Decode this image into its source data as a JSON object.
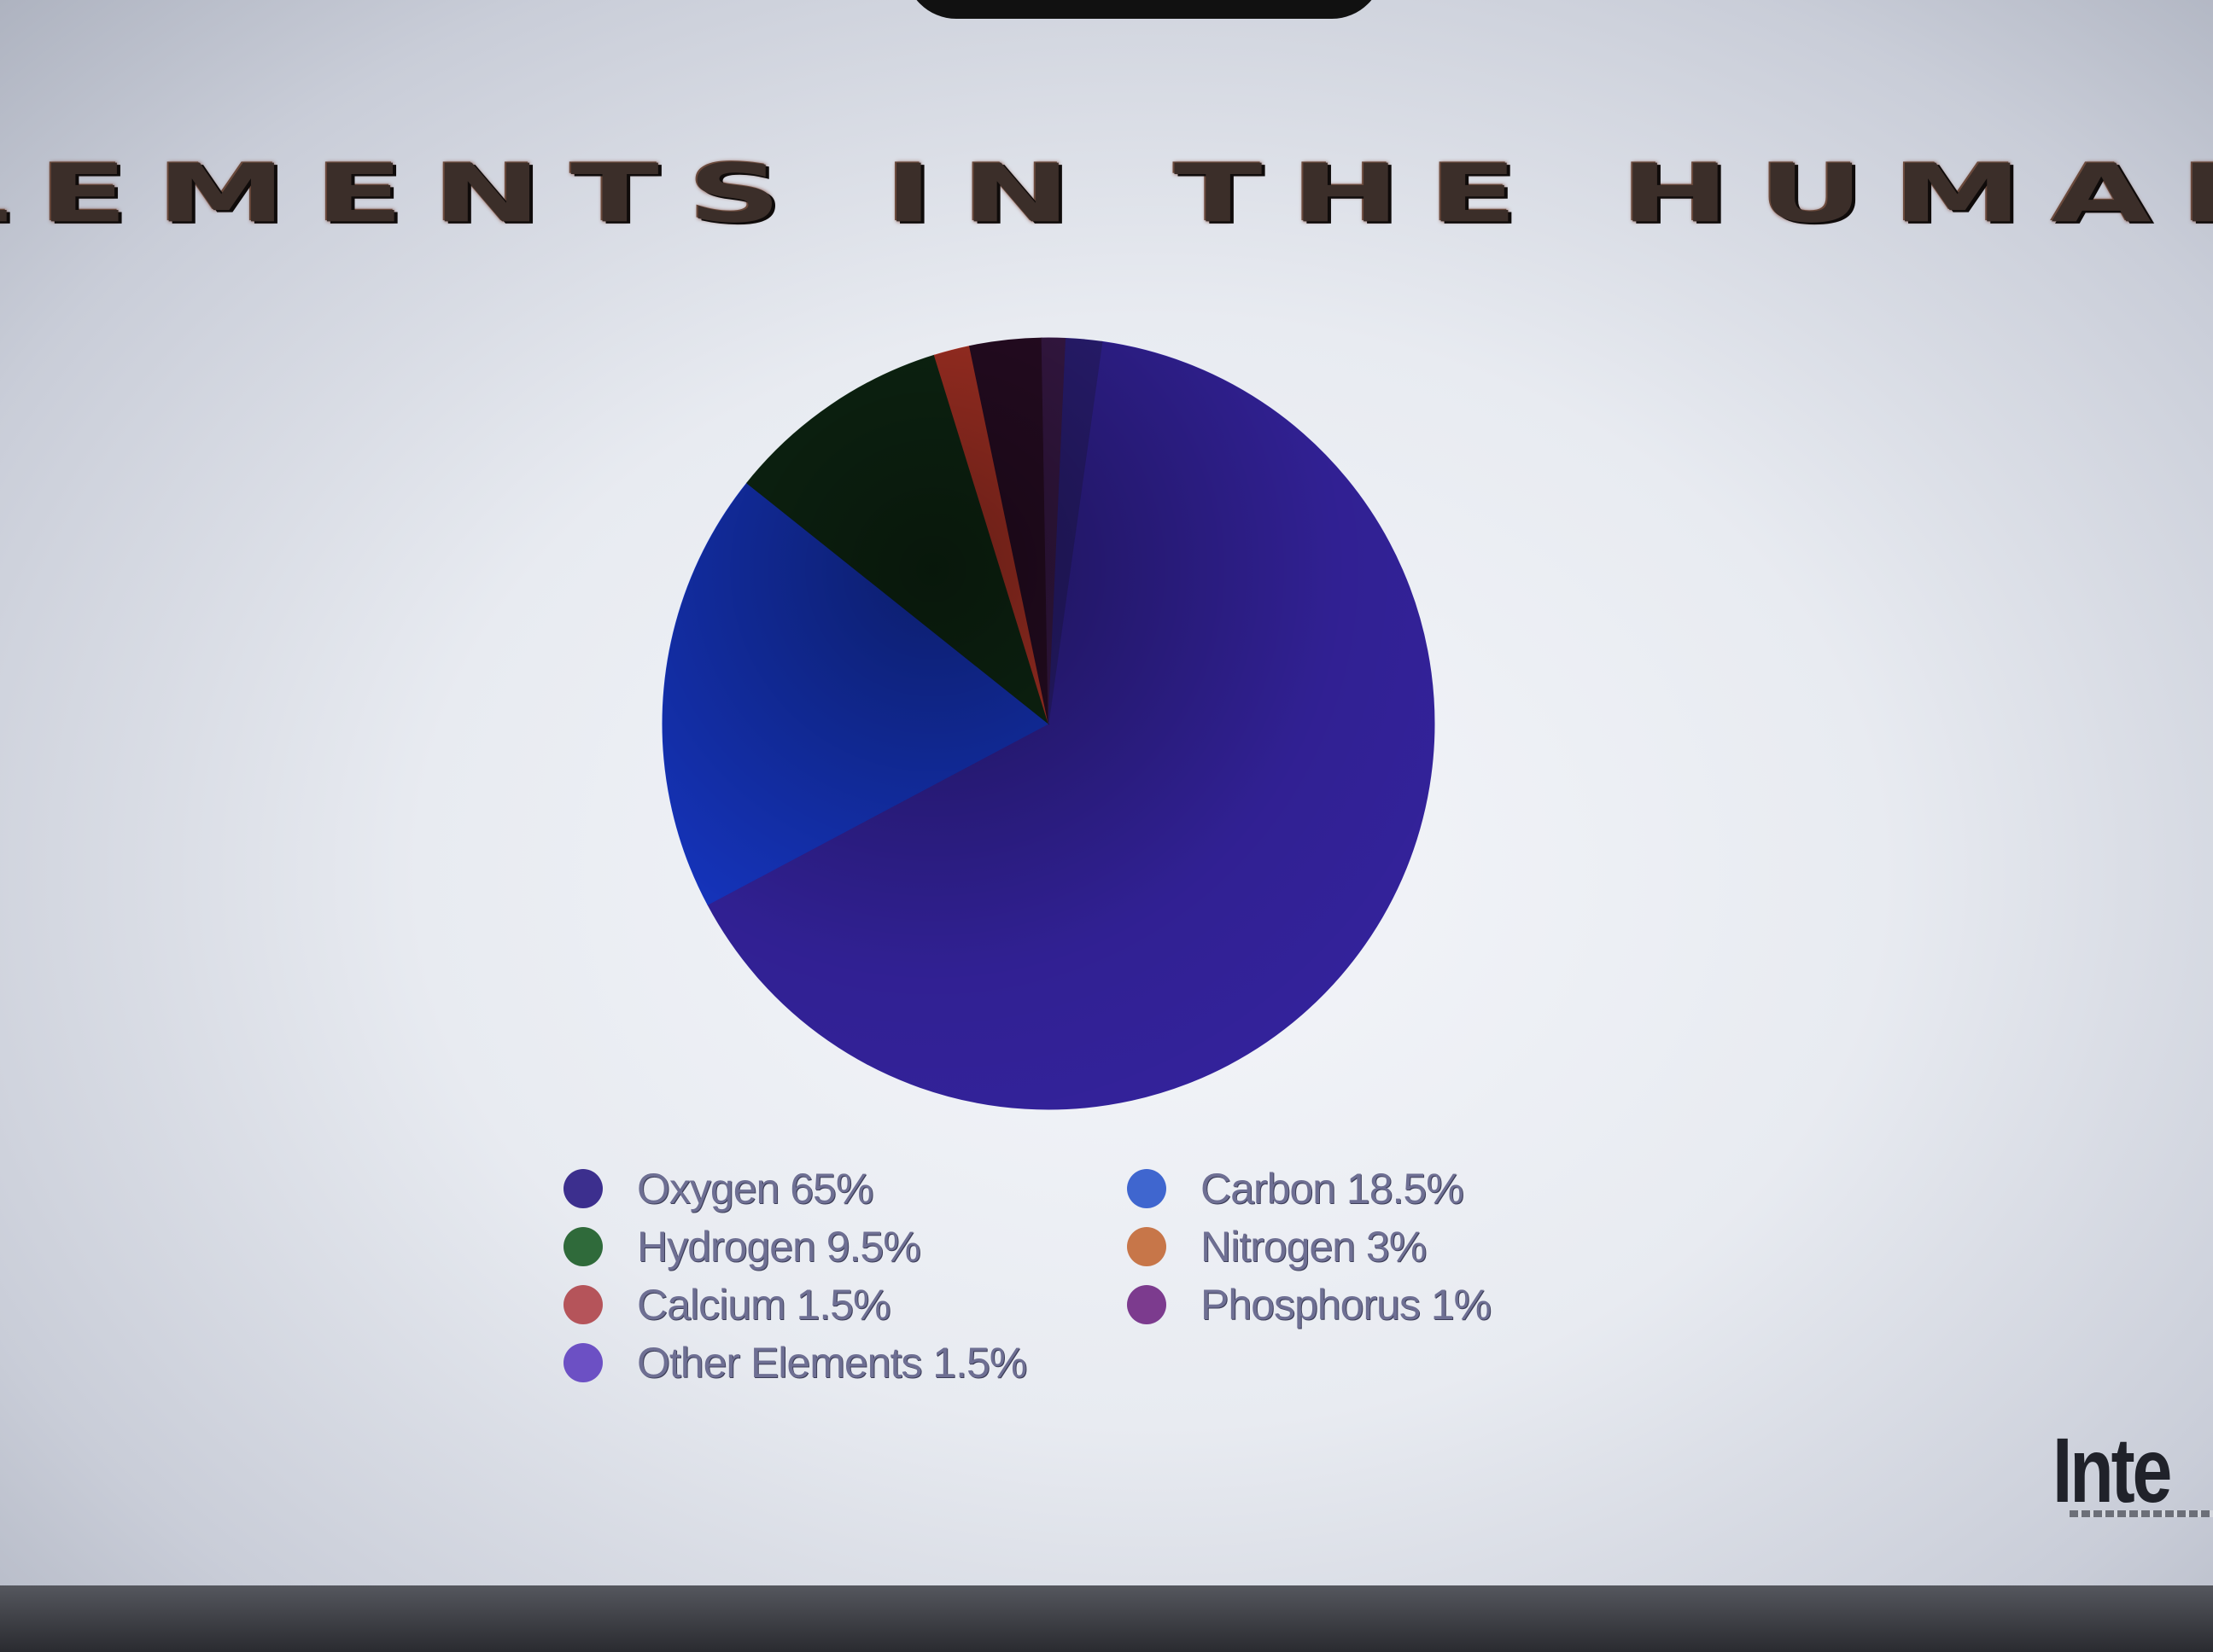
{
  "slide": {
    "title": "LEMENTS IN THE HUMAN BOD",
    "brand_logo": "Inte"
  },
  "colors": {
    "screen": "#eef0f5",
    "title_text": "#3b2e29"
  },
  "chart_data": {
    "type": "pie",
    "title": "LEMENTS IN THE HUMAN BOD",
    "legend_position": "bottom",
    "slices": [
      {
        "label": "Oxygen 65%",
        "name": "Oxygen",
        "value": 65,
        "color": "#33229a",
        "legend_color": "#3c2f8e"
      },
      {
        "label": "Carbon 18.5%",
        "name": "Carbon",
        "value": 18.5,
        "color": "#1636c4",
        "legend_color": "#3f66cf"
      },
      {
        "label": "Hydrogen 9.5%",
        "name": "Hydrogen",
        "value": 9.5,
        "color": "#0f2a14",
        "legend_color": "#2f6a3a"
      },
      {
        "label": "Nitrogen 3%",
        "name": "Nitrogen",
        "value": 3,
        "color": "#2a0d26",
        "legend_color": "#c77649"
      },
      {
        "label": "Calcium 1.5%",
        "name": "Calcium",
        "value": 1.5,
        "color": "#b83628",
        "legend_color": "#b5545a"
      },
      {
        "label": "Phosphorus 1%",
        "name": "Phosphorus",
        "value": 1,
        "color": "#3b1a4a",
        "legend_color": "#7c3b8e"
      },
      {
        "label": "Other Elements 1.5%",
        "name": "Other Elements",
        "value": 1.5,
        "color": "#2c1f7a",
        "legend_color": "#6c50c4"
      }
    ]
  }
}
